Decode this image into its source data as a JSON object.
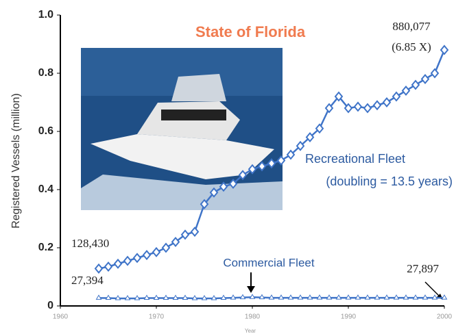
{
  "chart_data": {
    "type": "line",
    "title": "State of Florida",
    "xlabel": "Year",
    "ylabel": "Registered Vessels (million)",
    "x": [
      1964,
      1965,
      1966,
      1967,
      1968,
      1969,
      1970,
      1971,
      1972,
      1973,
      1974,
      1975,
      1976,
      1977,
      1978,
      1979,
      1980,
      1981,
      1982,
      1983,
      1984,
      1985,
      1986,
      1987,
      1988,
      1989,
      1990,
      1991,
      1992,
      1993,
      1994,
      1995,
      1996,
      1997,
      1998,
      1999,
      2000
    ],
    "series": [
      {
        "name": "Recreational Fleet",
        "color": "#3f74c8",
        "marker": "diamond",
        "values": [
          0.12843,
          0.135,
          0.145,
          0.155,
          0.165,
          0.175,
          0.185,
          0.2,
          0.22,
          0.245,
          0.255,
          0.35,
          0.39,
          0.41,
          0.42,
          0.45,
          0.47,
          0.48,
          0.49,
          0.5,
          0.52,
          0.55,
          0.58,
          0.61,
          0.68,
          0.72,
          0.68,
          0.685,
          0.68,
          0.69,
          0.7,
          0.72,
          0.74,
          0.76,
          0.78,
          0.8,
          0.880077
        ]
      },
      {
        "name": "Commercial Fleet",
        "color": "#3f74c8",
        "marker": "triangle",
        "values": [
          0.027394,
          0.027,
          0.026,
          0.026,
          0.026,
          0.027,
          0.027,
          0.027,
          0.027,
          0.027,
          0.026,
          0.026,
          0.026,
          0.027,
          0.028,
          0.029,
          0.03,
          0.029,
          0.028,
          0.028,
          0.028,
          0.028,
          0.028,
          0.028,
          0.028,
          0.028,
          0.028,
          0.028,
          0.028,
          0.028,
          0.028,
          0.028,
          0.028,
          0.028,
          0.028,
          0.028,
          0.027897
        ]
      }
    ],
    "annotations": [
      "880,077",
      "(6.85 X)",
      "128,430",
      "27,394",
      "27,897",
      "(doubling = 13.5 years)"
    ],
    "xlim": [
      1960,
      2000
    ],
    "xticks": [
      1960,
      1970,
      1980,
      1990,
      2000
    ],
    "ylim": [
      0,
      1
    ],
    "yticks": [
      0,
      0.2,
      0.4,
      0.6,
      0.8,
      {
        "value": 1,
        "label": "1.0"
      }
    ]
  }
}
